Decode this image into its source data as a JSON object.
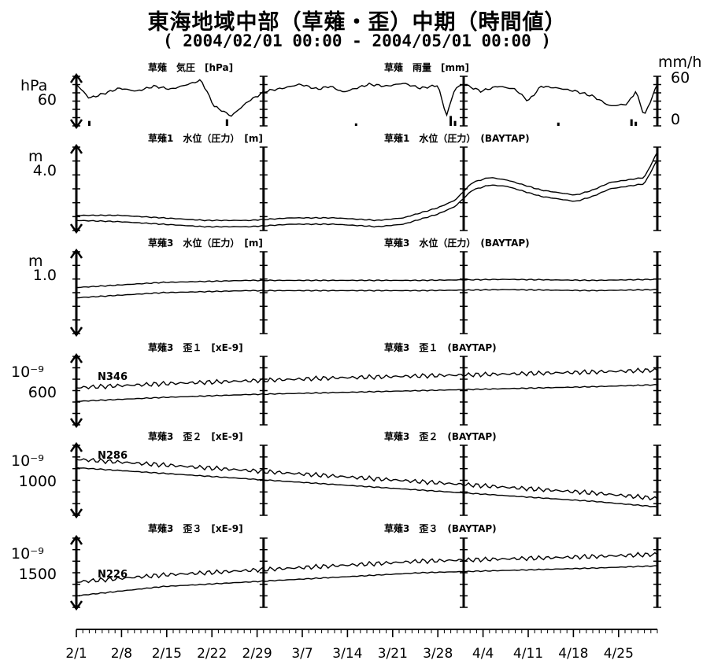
{
  "header": {
    "title": "東海地域中部（草薙・歪）中期（時間値）",
    "subtitle": "( 2004/02/01 00:00 - 2004/05/01 00:00 )"
  },
  "chart_data": {
    "type": "line",
    "x_tick_labels": [
      "2/1",
      "2/8",
      "2/15",
      "2/22",
      "2/29",
      "3/7",
      "3/14",
      "3/21",
      "3/28",
      "4/4",
      "4/11",
      "4/18",
      "4/25"
    ],
    "panels": [
      {
        "id": "pressure-rain",
        "left_title": "草薙　気圧　[hPa]",
        "right_title": "草薙　雨量　[mm]",
        "y_unit_left": "hPa",
        "y_tick_left": "60",
        "y_unit_right": "mm/h",
        "y_tick_right_top": "60",
        "y_tick_right_bottom": "0",
        "series": [
          {
            "x": [
              0,
              3,
              6,
              10,
              14,
              18,
              22,
              26,
              29,
              32,
              36,
              40,
              44,
              48,
              52,
              56,
              59,
              62,
              65,
              68,
              72,
              76,
              80,
              84,
              86,
              88,
              90,
              94,
              98,
              102,
              105,
              108,
              112,
              116,
              120,
              124,
              128,
              130,
              132,
              135
            ],
            "y": [
              62,
              48,
              52,
              58,
              55,
              60,
              57,
              62,
              66,
              40,
              30,
              45,
              55,
              58,
              62,
              57,
              60,
              54,
              58,
              62,
              60,
              63,
              58,
              61,
              30,
              58,
              62,
              55,
              60,
              57,
              45,
              60,
              58,
              55,
              50,
              40,
              42,
              55,
              30,
              62
            ]
          }
        ],
        "rain": [
          {
            "x": 3,
            "h": 6
          },
          {
            "x": 35,
            "h": 8
          },
          {
            "x": 65,
            "h": 3
          },
          {
            "x": 87,
            "h": 12
          },
          {
            "x": 88,
            "h": 6
          },
          {
            "x": 112,
            "h": 4
          },
          {
            "x": 129,
            "h": 8
          },
          {
            "x": 130,
            "h": 5
          }
        ]
      },
      {
        "id": "kusanagi1-water",
        "left_title": "草薙1　水位（圧力）　[m]",
        "right_title": "草薙1　水位（圧力）　(BAYTAP)",
        "y_unit_left": "m",
        "y_tick_left": "4.0",
        "series": [
          {
            "x": [
              0,
              10,
              20,
              30,
              40,
              50,
              60,
              70,
              76,
              80,
              84,
              88,
              92,
              96,
              100,
              104,
              108,
              112,
              116,
              120,
              124,
              128,
              132,
              135
            ],
            "y": [
              3.6,
              3.6,
              3.5,
              3.4,
              3.4,
              3.5,
              3.5,
              3.4,
              3.5,
              3.7,
              3.9,
              4.2,
              4.9,
              5.1,
              5.0,
              4.8,
              4.6,
              4.5,
              4.4,
              4.6,
              4.9,
              5.0,
              5.1,
              6.1
            ]
          },
          {
            "x": [
              0,
              10,
              20,
              30,
              40,
              50,
              60,
              70,
              76,
              80,
              84,
              88,
              92,
              96,
              100,
              104,
              108,
              112,
              116,
              120,
              124,
              128,
              132,
              135
            ],
            "y": [
              3.4,
              3.35,
              3.25,
              3.15,
              3.15,
              3.25,
              3.25,
              3.15,
              3.25,
              3.45,
              3.65,
              3.95,
              4.6,
              4.8,
              4.75,
              4.55,
              4.35,
              4.25,
              4.15,
              4.35,
              4.65,
              4.75,
              4.85,
              5.8
            ]
          }
        ]
      },
      {
        "id": "kusanagi3-water",
        "left_title": "草薙3　水位（圧力）　[m]",
        "right_title": "草薙3　水位（圧力）　(BAYTAP)",
        "y_unit_left": "m",
        "y_tick_left": "1.0",
        "series": [
          {
            "x": [
              0,
              20,
              40,
              60,
              80,
              100,
              120,
              135
            ],
            "y": [
              0.95,
              1.0,
              1.02,
              1.02,
              1.02,
              1.03,
              1.02,
              1.03
            ]
          },
          {
            "x": [
              0,
              20,
              40,
              60,
              80,
              100,
              120,
              135
            ],
            "y": [
              0.85,
              0.9,
              0.92,
              0.92,
              0.92,
              0.93,
              0.92,
              0.93
            ]
          }
        ]
      },
      {
        "id": "strain1",
        "left_title": "草薙3　歪１　[xE-9]",
        "right_title": "草薙3　歪１　(BAYTAP)",
        "y_unit_left": "10⁻⁹",
        "y_tick_left": "600",
        "series_label": "N346",
        "series": [
          {
            "x": [
              0,
              20,
              40,
              60,
              80,
              100,
              120,
              135
            ],
            "y": [
              640,
              660,
              675,
              690,
              700,
              710,
              720,
              730
            ]
          },
          {
            "x": [
              0,
              20,
              40,
              60,
              80,
              100,
              120,
              135
            ],
            "y": [
              570,
              590,
              605,
              615,
              625,
              635,
              645,
              655
            ]
          }
        ]
      },
      {
        "id": "strain2",
        "left_title": "草薙3　歪２　[xE-9]",
        "right_title": "草薙3　歪２　(BAYTAP)",
        "y_unit_left": "10⁻⁹",
        "y_tick_left": "1000",
        "series_label": "N286",
        "series": [
          {
            "x": [
              0,
              20,
              40,
              60,
              80,
              100,
              120,
              135
            ],
            "y": [
              1100,
              1080,
              1060,
              1040,
              1020,
              1000,
              980,
              960
            ]
          },
          {
            "x": [
              0,
              20,
              40,
              60,
              80,
              100,
              120,
              135
            ],
            "y": [
              1070,
              1050,
              1030,
              1010,
              990,
              970,
              950,
              930
            ]
          }
        ]
      },
      {
        "id": "strain3",
        "left_title": "草薙3　歪３　[xE-9]",
        "right_title": "草薙3　歪３　(BAYTAP)",
        "y_unit_left": "10⁻⁹",
        "y_tick_left": "1500",
        "series_label": "N226",
        "series": [
          {
            "x": [
              0,
              20,
              40,
              60,
              80,
              100,
              120,
              135
            ],
            "y": [
              1460,
              1490,
              1510,
              1530,
              1550,
              1560,
              1570,
              1580
            ]
          },
          {
            "x": [
              0,
              20,
              40,
              60,
              80,
              100,
              120,
              135
            ],
            "y": [
              1400,
              1440,
              1460,
              1480,
              1500,
              1510,
              1520,
              1530
            ]
          }
        ]
      }
    ]
  }
}
